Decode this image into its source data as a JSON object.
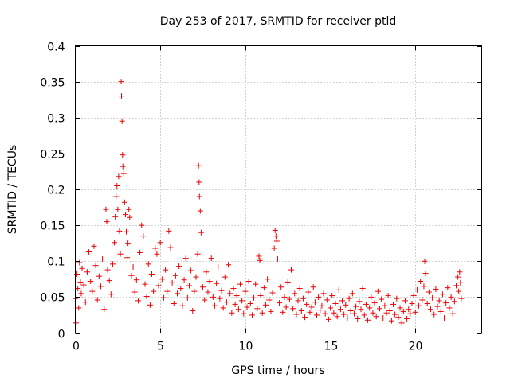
{
  "chart_data": {
    "type": "scatter",
    "title": "Day 253 of 2017, SRMTID for receiver ptld",
    "xlabel": "GPS time / hours",
    "ylabel": "SRMTID / TECUs",
    "xlim": [
      0,
      23.9
    ],
    "ylim": [
      0,
      0.4
    ],
    "grid": true,
    "marker": "+",
    "series_color": "#ee0000",
    "x_ticks": [
      {
        "value": 0,
        "label": "0"
      },
      {
        "value": 5,
        "label": "5"
      },
      {
        "value": 10,
        "label": "10"
      },
      {
        "value": 15,
        "label": "15"
      },
      {
        "value": 20,
        "label": "20"
      }
    ],
    "y_ticks": [
      {
        "value": 0,
        "label": "0"
      },
      {
        "value": 0.05,
        "label": "0.05"
      },
      {
        "value": 0.1,
        "label": "0.1"
      },
      {
        "value": 0.15,
        "label": "0.15"
      },
      {
        "value": 0.2,
        "label": "0.2"
      },
      {
        "value": 0.25,
        "label": "0.25"
      },
      {
        "value": 0.3,
        "label": "0.3"
      },
      {
        "value": 0.35,
        "label": "0.35"
      },
      {
        "value": 0.4,
        "label": "0.4"
      }
    ],
    "series": [
      {
        "name": "SRMTID",
        "points": [
          [
            0.0,
            0.048
          ],
          [
            0.05,
            0.014
          ],
          [
            0.1,
            0.082
          ],
          [
            0.15,
            0.062
          ],
          [
            0.2,
            0.035
          ],
          [
            0.25,
            0.098
          ],
          [
            0.3,
            0.071
          ],
          [
            0.35,
            0.055
          ],
          [
            0.4,
            0.09
          ],
          [
            0.5,
            0.067
          ],
          [
            0.6,
            0.043
          ],
          [
            0.7,
            0.085
          ],
          [
            0.8,
            0.113
          ],
          [
            0.9,
            0.072
          ],
          [
            1.0,
            0.058
          ],
          [
            1.1,
            0.121
          ],
          [
            1.2,
            0.094
          ],
          [
            1.3,
            0.046
          ],
          [
            1.4,
            0.079
          ],
          [
            1.5,
            0.065
          ],
          [
            1.6,
            0.103
          ],
          [
            1.7,
            0.033
          ],
          [
            1.8,
            0.172
          ],
          [
            1.85,
            0.155
          ],
          [
            1.9,
            0.088
          ],
          [
            2.0,
            0.073
          ],
          [
            2.1,
            0.054
          ],
          [
            2.2,
            0.096
          ],
          [
            2.3,
            0.126
          ],
          [
            2.35,
            0.162
          ],
          [
            2.4,
            0.19
          ],
          [
            2.45,
            0.205
          ],
          [
            2.5,
            0.172
          ],
          [
            2.55,
            0.218
          ],
          [
            2.6,
            0.142
          ],
          [
            2.65,
            0.11
          ],
          [
            2.7,
            0.35
          ],
          [
            2.72,
            0.33
          ],
          [
            2.75,
            0.295
          ],
          [
            2.78,
            0.248
          ],
          [
            2.8,
            0.232
          ],
          [
            2.85,
            0.222
          ],
          [
            2.9,
            0.182
          ],
          [
            2.95,
            0.165
          ],
          [
            3.0,
            0.141
          ],
          [
            3.05,
            0.105
          ],
          [
            3.1,
            0.125
          ],
          [
            3.15,
            0.172
          ],
          [
            3.2,
            0.161
          ],
          [
            3.3,
            0.08
          ],
          [
            3.4,
            0.092
          ],
          [
            3.5,
            0.057
          ],
          [
            3.6,
            0.074
          ],
          [
            3.7,
            0.045
          ],
          [
            3.8,
            0.112
          ],
          [
            3.9,
            0.15
          ],
          [
            4.0,
            0.135
          ],
          [
            4.1,
            0.068
          ],
          [
            4.2,
            0.051
          ],
          [
            4.3,
            0.096
          ],
          [
            4.4,
            0.039
          ],
          [
            4.5,
            0.082
          ],
          [
            4.6,
            0.058
          ],
          [
            4.7,
            0.118
          ],
          [
            4.8,
            0.11
          ],
          [
            4.9,
            0.066
          ],
          [
            5.0,
            0.126
          ],
          [
            5.1,
            0.075
          ],
          [
            5.2,
            0.049
          ],
          [
            5.3,
            0.088
          ],
          [
            5.4,
            0.058
          ],
          [
            5.5,
            0.142
          ],
          [
            5.6,
            0.119
          ],
          [
            5.7,
            0.07
          ],
          [
            5.8,
            0.041
          ],
          [
            5.9,
            0.08
          ],
          [
            6.0,
            0.055
          ],
          [
            6.1,
            0.093
          ],
          [
            6.2,
            0.062
          ],
          [
            6.3,
            0.038
          ],
          [
            6.4,
            0.074
          ],
          [
            6.5,
            0.104
          ],
          [
            6.6,
            0.049
          ],
          [
            6.7,
            0.066
          ],
          [
            6.8,
            0.087
          ],
          [
            6.9,
            0.031
          ],
          [
            7.0,
            0.058
          ],
          [
            7.1,
            0.078
          ],
          [
            7.2,
            0.11
          ],
          [
            7.25,
            0.233
          ],
          [
            7.28,
            0.21
          ],
          [
            7.3,
            0.19
          ],
          [
            7.35,
            0.17
          ],
          [
            7.4,
            0.14
          ],
          [
            7.5,
            0.064
          ],
          [
            7.6,
            0.046
          ],
          [
            7.7,
            0.085
          ],
          [
            7.8,
            0.057
          ],
          [
            7.9,
            0.072
          ],
          [
            8.0,
            0.104
          ],
          [
            8.1,
            0.05
          ],
          [
            8.2,
            0.038
          ],
          [
            8.3,
            0.069
          ],
          [
            8.4,
            0.092
          ],
          [
            8.5,
            0.048
          ],
          [
            8.6,
            0.059
          ],
          [
            8.7,
            0.035
          ],
          [
            8.8,
            0.078
          ],
          [
            8.9,
            0.043
          ],
          [
            9.0,
            0.095
          ],
          [
            9.1,
            0.055
          ],
          [
            9.2,
            0.028
          ],
          [
            9.3,
            0.062
          ],
          [
            9.4,
            0.04
          ],
          [
            9.5,
            0.052
          ],
          [
            9.6,
            0.033
          ],
          [
            9.7,
            0.068
          ],
          [
            9.8,
            0.045
          ],
          [
            9.9,
            0.027
          ],
          [
            10.0,
            0.058
          ],
          [
            10.1,
            0.036
          ],
          [
            10.2,
            0.072
          ],
          [
            10.3,
            0.041
          ],
          [
            10.4,
            0.025
          ],
          [
            10.5,
            0.049
          ],
          [
            10.6,
            0.068
          ],
          [
            10.7,
            0.034
          ],
          [
            10.8,
            0.107
          ],
          [
            10.85,
            0.101
          ],
          [
            10.9,
            0.052
          ],
          [
            11.0,
            0.028
          ],
          [
            11.1,
            0.063
          ],
          [
            11.2,
            0.039
          ],
          [
            11.3,
            0.075
          ],
          [
            11.4,
            0.046
          ],
          [
            11.5,
            0.03
          ],
          [
            11.6,
            0.056
          ],
          [
            11.7,
            0.118
          ],
          [
            11.75,
            0.143
          ],
          [
            11.8,
            0.135
          ],
          [
            11.85,
            0.128
          ],
          [
            11.9,
            0.103
          ],
          [
            12.0,
            0.042
          ],
          [
            12.1,
            0.064
          ],
          [
            12.2,
            0.029
          ],
          [
            12.3,
            0.05
          ],
          [
            12.4,
            0.036
          ],
          [
            12.5,
            0.071
          ],
          [
            12.6,
            0.047
          ],
          [
            12.7,
            0.088
          ],
          [
            12.8,
            0.034
          ],
          [
            12.9,
            0.055
          ],
          [
            13.0,
            0.026
          ],
          [
            13.1,
            0.045
          ],
          [
            13.2,
            0.062
          ],
          [
            13.3,
            0.031
          ],
          [
            13.4,
            0.048
          ],
          [
            13.5,
            0.022
          ],
          [
            13.6,
            0.04
          ],
          [
            13.7,
            0.057
          ],
          [
            13.8,
            0.029
          ],
          [
            13.9,
            0.036
          ],
          [
            14.0,
            0.064
          ],
          [
            14.1,
            0.043
          ],
          [
            14.2,
            0.025
          ],
          [
            14.3,
            0.05
          ],
          [
            14.4,
            0.032
          ],
          [
            14.5,
            0.038
          ],
          [
            14.6,
            0.055
          ],
          [
            14.7,
            0.027
          ],
          [
            14.8,
            0.046
          ],
          [
            14.9,
            0.019
          ],
          [
            15.0,
            0.035
          ],
          [
            15.1,
            0.052
          ],
          [
            15.2,
            0.028
          ],
          [
            15.3,
            0.041
          ],
          [
            15.4,
            0.023
          ],
          [
            15.5,
            0.06
          ],
          [
            15.6,
            0.033
          ],
          [
            15.7,
            0.045
          ],
          [
            15.8,
            0.026
          ],
          [
            15.9,
            0.039
          ],
          [
            16.0,
            0.021
          ],
          [
            16.1,
            0.048
          ],
          [
            16.2,
            0.031
          ],
          [
            16.3,
            0.055
          ],
          [
            16.4,
            0.027
          ],
          [
            16.5,
            0.037
          ],
          [
            16.6,
            0.02
          ],
          [
            16.7,
            0.044
          ],
          [
            16.8,
            0.033
          ],
          [
            16.9,
            0.062
          ],
          [
            17.0,
            0.025
          ],
          [
            17.1,
            0.04
          ],
          [
            17.2,
            0.018
          ],
          [
            17.3,
            0.035
          ],
          [
            17.4,
            0.05
          ],
          [
            17.5,
            0.028
          ],
          [
            17.6,
            0.042
          ],
          [
            17.7,
            0.023
          ],
          [
            17.8,
            0.058
          ],
          [
            17.9,
            0.034
          ],
          [
            18.0,
            0.047
          ],
          [
            18.1,
            0.021
          ],
          [
            18.2,
            0.038
          ],
          [
            18.3,
            0.028
          ],
          [
            18.4,
            0.052
          ],
          [
            18.5,
            0.031
          ],
          [
            18.6,
            0.017
          ],
          [
            18.7,
            0.04
          ],
          [
            18.8,
            0.026
          ],
          [
            18.9,
            0.048
          ],
          [
            19.0,
            0.022
          ],
          [
            19.1,
            0.035
          ],
          [
            19.2,
            0.014
          ],
          [
            19.3,
            0.03
          ],
          [
            19.4,
            0.045
          ],
          [
            19.5,
            0.02
          ],
          [
            19.6,
            0.033
          ],
          [
            19.7,
            0.027
          ],
          [
            19.8,
            0.041
          ],
          [
            19.9,
            0.052
          ],
          [
            20.0,
            0.029
          ],
          [
            20.1,
            0.06
          ],
          [
            20.2,
            0.038
          ],
          [
            20.3,
            0.072
          ],
          [
            20.4,
            0.046
          ],
          [
            20.5,
            0.065
          ],
          [
            20.55,
            0.1
          ],
          [
            20.6,
            0.083
          ],
          [
            20.7,
            0.041
          ],
          [
            20.8,
            0.057
          ],
          [
            20.9,
            0.033
          ],
          [
            21.0,
            0.049
          ],
          [
            21.1,
            0.026
          ],
          [
            21.2,
            0.061
          ],
          [
            21.3,
            0.037
          ],
          [
            21.4,
            0.045
          ],
          [
            21.5,
            0.03
          ],
          [
            21.6,
            0.054
          ],
          [
            21.7,
            0.021
          ],
          [
            21.8,
            0.042
          ],
          [
            21.9,
            0.063
          ],
          [
            22.0,
            0.035
          ],
          [
            22.1,
            0.05
          ],
          [
            22.2,
            0.027
          ],
          [
            22.3,
            0.044
          ],
          [
            22.4,
            0.066
          ],
          [
            22.5,
            0.078
          ],
          [
            22.55,
            0.058
          ],
          [
            22.6,
            0.085
          ],
          [
            22.65,
            0.07
          ],
          [
            22.7,
            0.048
          ]
        ]
      }
    ]
  }
}
